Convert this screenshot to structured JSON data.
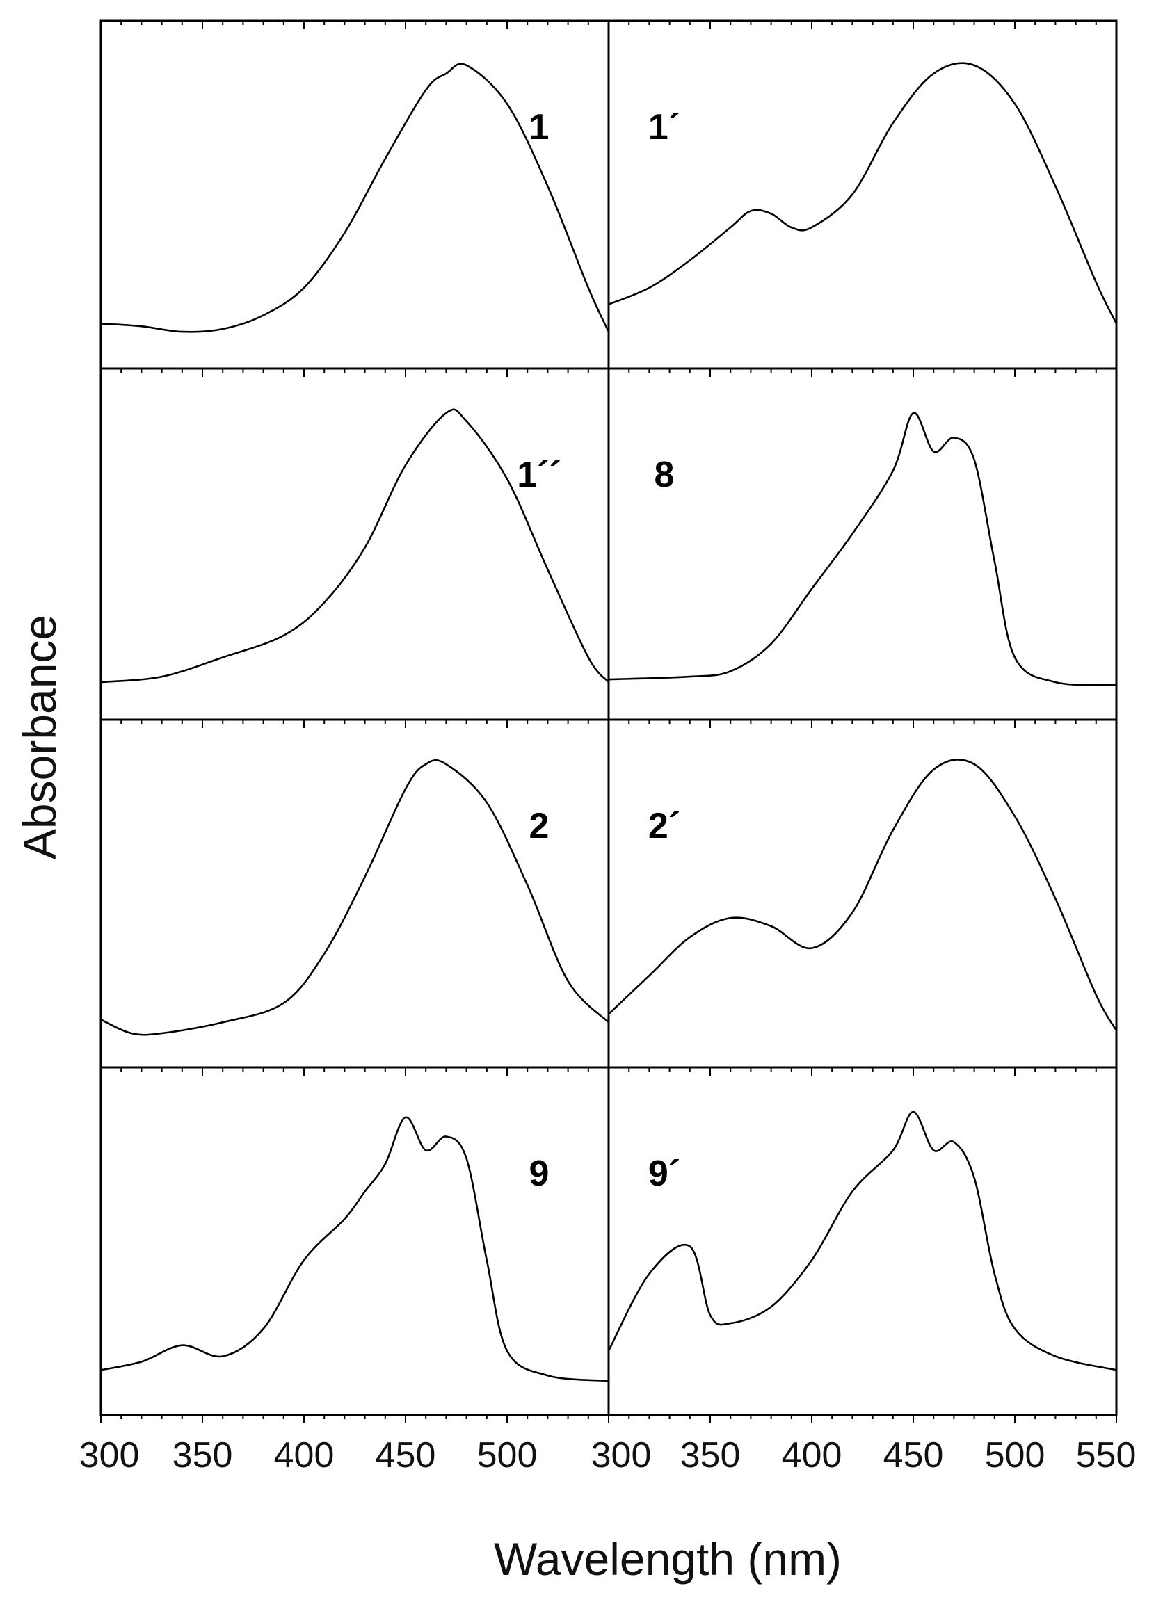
{
  "chart_data": {
    "type": "line",
    "xlabel": "Wavelength (nm)",
    "ylabel": "Absorbance",
    "x_ticks_left": [
      300,
      350,
      400,
      450,
      500
    ],
    "x_ticks_right": [
      300,
      350,
      400,
      450,
      500,
      550
    ],
    "xlim": [
      300,
      550
    ],
    "ylim": [
      0,
      1
    ],
    "grid": false,
    "panels": [
      {
        "label": "1",
        "column": "left",
        "row": 0,
        "x": [
          300,
          320,
          340,
          360,
          380,
          400,
          420,
          440,
          460,
          470,
          480,
          500,
          520,
          540,
          550
        ],
        "y": [
          0.05,
          0.04,
          0.02,
          0.03,
          0.08,
          0.18,
          0.38,
          0.65,
          0.9,
          0.96,
          0.99,
          0.85,
          0.55,
          0.18,
          0.02
        ]
      },
      {
        "label": "1´",
        "column": "right",
        "row": 0,
        "x": [
          300,
          320,
          340,
          360,
          370,
          380,
          390,
          400,
          420,
          440,
          460,
          480,
          500,
          520,
          540,
          550
        ],
        "y": [
          0.12,
          0.18,
          0.28,
          0.4,
          0.46,
          0.45,
          0.4,
          0.4,
          0.52,
          0.78,
          0.96,
          0.99,
          0.85,
          0.55,
          0.2,
          0.05
        ]
      },
      {
        "label": "1´´",
        "column": "left",
        "row": 1,
        "x": [
          300,
          330,
          360,
          390,
          410,
          430,
          450,
          470,
          480,
          500,
          520,
          540,
          550
        ],
        "y": [
          0.01,
          0.03,
          0.1,
          0.18,
          0.3,
          0.5,
          0.8,
          0.99,
          0.96,
          0.75,
          0.42,
          0.1,
          0.01
        ]
      },
      {
        "label": "8",
        "column": "right",
        "row": 1,
        "x": [
          300,
          340,
          360,
          380,
          400,
          420,
          440,
          450,
          460,
          470,
          480,
          490,
          500,
          520,
          550
        ],
        "y": [
          0.02,
          0.03,
          0.05,
          0.15,
          0.35,
          0.55,
          0.78,
          0.99,
          0.85,
          0.9,
          0.82,
          0.45,
          0.1,
          0.01,
          0.0
        ]
      },
      {
        "label": "2",
        "column": "left",
        "row": 2,
        "x": [
          300,
          315,
          330,
          360,
          390,
          410,
          430,
          450,
          460,
          470,
          490,
          510,
          530,
          550
        ],
        "y": [
          0.06,
          0.01,
          0.01,
          0.05,
          0.12,
          0.3,
          0.58,
          0.9,
          0.99,
          0.99,
          0.85,
          0.55,
          0.2,
          0.05
        ]
      },
      {
        "label": "2´",
        "column": "right",
        "row": 2,
        "x": [
          300,
          320,
          340,
          360,
          380,
          400,
          420,
          440,
          460,
          480,
          500,
          520,
          540,
          550
        ],
        "y": [
          0.08,
          0.22,
          0.36,
          0.43,
          0.4,
          0.32,
          0.45,
          0.75,
          0.97,
          0.99,
          0.8,
          0.5,
          0.15,
          0.02
        ]
      },
      {
        "label": "9",
        "column": "left",
        "row": 3,
        "x": [
          300,
          320,
          340,
          360,
          380,
          400,
          420,
          430,
          440,
          450,
          460,
          470,
          480,
          490,
          500,
          520,
          550
        ],
        "y": [
          0.05,
          0.08,
          0.14,
          0.1,
          0.2,
          0.45,
          0.6,
          0.7,
          0.8,
          0.97,
          0.85,
          0.9,
          0.82,
          0.45,
          0.12,
          0.03,
          0.01
        ]
      },
      {
        "label": "9´",
        "column": "right",
        "row": 3,
        "x": [
          300,
          320,
          340,
          350,
          360,
          380,
          400,
          420,
          440,
          450,
          460,
          470,
          480,
          490,
          500,
          520,
          550
        ],
        "y": [
          0.12,
          0.4,
          0.5,
          0.25,
          0.22,
          0.28,
          0.45,
          0.7,
          0.85,
          0.99,
          0.85,
          0.88,
          0.75,
          0.4,
          0.2,
          0.1,
          0.05
        ]
      }
    ]
  }
}
